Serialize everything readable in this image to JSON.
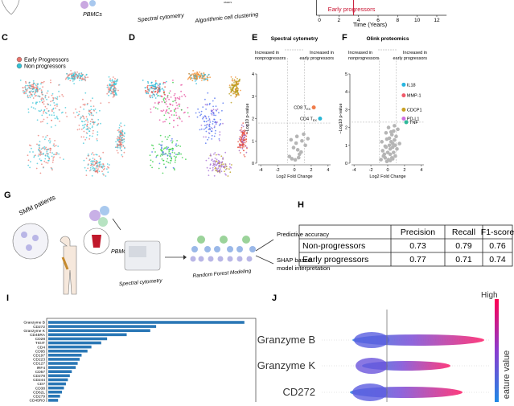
{
  "top_strip": {
    "labels": [
      "PBMCs",
      "Spectral cytometry",
      "Algorithmic cell clustering",
      "UMAP1"
    ]
  },
  "panel_letters": [
    "C",
    "D",
    "E",
    "F",
    "G",
    "H",
    "I",
    "J"
  ],
  "umap": {
    "legend": [
      {
        "label": "Early Progressors",
        "color": "#e8736b"
      },
      {
        "label": "Non progressors",
        "color": "#33c3d6"
      }
    ]
  },
  "chart_data": [
    {
      "type": "timeline",
      "xlabel": "Time (Years)",
      "annotation": "Early progressors",
      "color": "#c8102e",
      "xlim": [
        -0.3,
        13
      ],
      "xticks": [
        0,
        2,
        4,
        6,
        8,
        10,
        12
      ],
      "marker_x": 3.5
    },
    {
      "type": "volcano",
      "title": "Spectral cytometry",
      "xlabel": "Log2 Fold Change",
      "ylabel": "−Log10 p-value",
      "left_note": [
        "Increased in",
        "nonprogressors"
      ],
      "right_note": [
        "Increased in",
        "early progressors"
      ],
      "xlim": [
        -4.3,
        4.3
      ],
      "ylim": [
        0,
        4
      ],
      "xticks": [
        -4,
        -2,
        0,
        2,
        4
      ],
      "yticks": [
        0,
        1,
        2,
        3,
        4
      ],
      "vlines": [
        -0.8,
        1.2
      ],
      "hline": 1.8,
      "color": "#b5b5b5",
      "x": [
        -0.6,
        -0.3,
        0.1,
        0.4,
        0.6,
        0.9,
        1.1,
        0.2,
        -0.1,
        0.5,
        0.8,
        1.3,
        1.6,
        0.3,
        -0.4
      ],
      "y": [
        0.3,
        0.2,
        0.15,
        0.6,
        0.4,
        1.0,
        1.3,
        0.9,
        0.7,
        0.25,
        0.5,
        0.8,
        1.1,
        1.2,
        1.05
      ],
      "labeled": [
        {
          "label": "CD8 T",
          "sub": "EX",
          "x": 2.3,
          "y": 2.5,
          "color": "#f07c4a"
        },
        {
          "label": "CD4 T",
          "sub": "EX",
          "x": 3.05,
          "y": 2.0,
          "color": "#2ab7d6"
        }
      ]
    },
    {
      "type": "volcano",
      "title": "Olink proteomics",
      "xlabel": "Log2 Fold Change",
      "ylabel": "−Log10 p-value",
      "left_note": [
        "Increased in",
        "nonprogressors"
      ],
      "right_note": [
        "Increased in",
        "early progressors"
      ],
      "xlim": [
        -4.3,
        4.3
      ],
      "ylim": [
        0,
        5
      ],
      "xticks": [
        -4,
        -2,
        0,
        2,
        4
      ],
      "yticks": [
        0,
        1,
        2,
        3,
        4,
        5
      ],
      "vlines": [
        -1,
        1
      ],
      "hline": 2.3,
      "color": "#b5b5b5",
      "x": [
        -0.8,
        -0.5,
        -0.3,
        -0.1,
        0.1,
        0.3,
        0.5,
        0.7,
        0.9,
        1.1,
        -0.6,
        -0.2,
        0.2,
        0.4,
        0.6,
        0.8,
        1.0,
        -0.4,
        0.0,
        0.3,
        0.6,
        0.9,
        -0.7,
        0.5,
        0.2,
        -0.2,
        0.7,
        1.2,
        0.1,
        0.4,
        -0.1,
        0.8,
        0.3,
        0.6,
        1.4,
        -0.3
      ],
      "y": [
        0.2,
        0.4,
        0.3,
        0.1,
        0.2,
        0.5,
        0.3,
        0.6,
        0.4,
        0.8,
        0.7,
        0.9,
        1.0,
        1.2,
        1.1,
        1.3,
        1.5,
        0.5,
        0.6,
        0.8,
        0.9,
        1.0,
        1.2,
        1.6,
        1.4,
        1.7,
        1.8,
        1.9,
        2.0,
        1.75,
        1.35,
        2.1,
        0.15,
        0.25,
        1.1,
        0.95
      ],
      "labeled": [
        {
          "label": "IL18",
          "x": 1.9,
          "y": 4.4,
          "color": "#29b6e0"
        },
        {
          "label": "MMP-1",
          "x": 1.9,
          "y": 3.8,
          "color": "#f05a6a"
        },
        {
          "label": "CDCP1",
          "x": 1.9,
          "y": 3.0,
          "color": "#c9a227"
        },
        {
          "label": "PD-L1",
          "x": 1.9,
          "y": 2.5,
          "color": "#d070e0"
        },
        {
          "label": "TNF",
          "x": 2.2,
          "y": 2.3,
          "color": "#2fb89a"
        }
      ]
    },
    {
      "type": "hbar",
      "color": "#2b78b6",
      "xlim": [
        0,
        1.05
      ],
      "categories": [
        "Granzyme B",
        "CD272",
        "Granzyme K",
        "CD45RA",
        "CD28",
        "TIGIT",
        "CD4",
        "CD95",
        "CD197",
        "CD223",
        "CD127",
        "IRF4",
        "CD57",
        "CD278",
        "CD244",
        "CD7",
        "CD38",
        "CD62L",
        "CD279",
        "CD45RO"
      ],
      "values": [
        1.0,
        0.55,
        0.52,
        0.4,
        0.3,
        0.27,
        0.22,
        0.2,
        0.17,
        0.16,
        0.15,
        0.14,
        0.12,
        0.11,
        0.1,
        0.09,
        0.08,
        0.07,
        0.06,
        0.05
      ]
    }
  ],
  "diagram": {
    "labels": [
      "SMM patients",
      "PBMCs",
      "Spectral cytometry",
      "Random Forest Modeling",
      "Predictive accuracy",
      "SHAP based",
      "model interpretation"
    ]
  },
  "table": {
    "header": [
      "",
      "Precision",
      "Recall",
      "F1-score"
    ],
    "rows": [
      [
        "Non-progressors",
        0.73,
        0.79,
        0.76
      ],
      [
        "Early progressors",
        0.77,
        0.71,
        0.74
      ]
    ]
  },
  "shap": {
    "features": [
      "Granzyme B",
      "Granzyme K",
      "CD272"
    ],
    "colorbar_high": "High",
    "colorbar_label": "eature value"
  }
}
